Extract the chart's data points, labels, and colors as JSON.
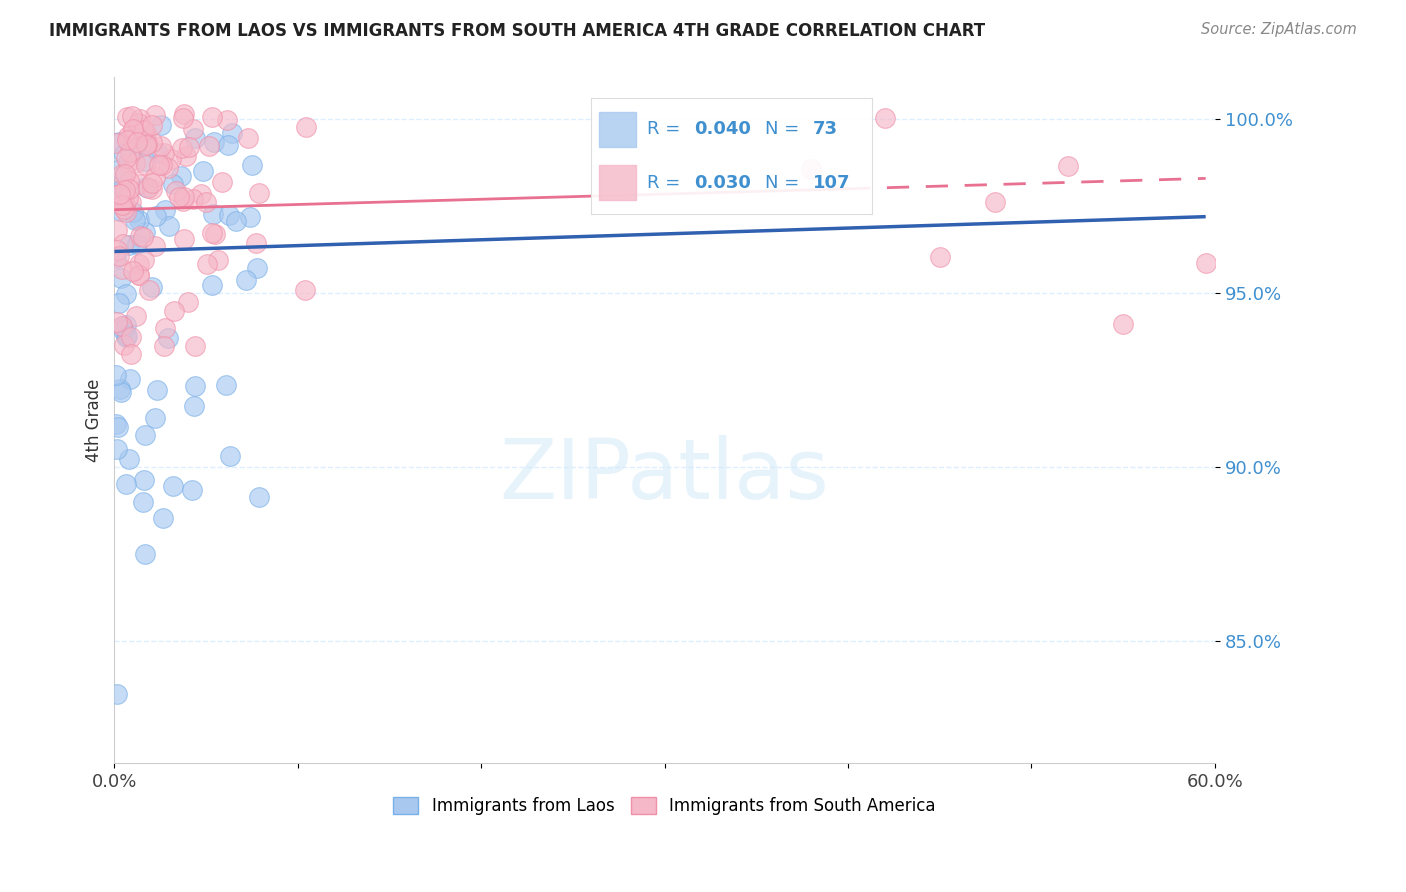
{
  "title": "IMMIGRANTS FROM LAOS VS IMMIGRANTS FROM SOUTH AMERICA 4TH GRADE CORRELATION CHART",
  "source": "Source: ZipAtlas.com",
  "ylabel": "4th Grade",
  "yaxis_labels": [
    "100.0%",
    "95.0%",
    "90.0%",
    "85.0%"
  ],
  "yaxis_values": [
    1.0,
    0.95,
    0.9,
    0.85
  ],
  "xmin": 0.0,
  "xmax": 0.6,
  "ymin": 0.815,
  "ymax": 1.012,
  "blue_R": 0.04,
  "blue_N": 73,
  "pink_R": 0.03,
  "pink_N": 107,
  "blue_color": "#a8c8f0",
  "pink_color": "#f5b8c8",
  "blue_edge_color": "#7ab0e8",
  "pink_edge_color": "#f090a8",
  "blue_line_color": "#3060b0",
  "pink_line_color": "#e87090",
  "legend_label_blue": "Immigrants from Laos",
  "legend_label_pink": "Immigrants from South America",
  "watermark_color": "#d0e8f8",
  "legend_text_color": "#4090d0",
  "title_color": "#222222",
  "source_color": "#888888",
  "grid_color": "#ddeeff",
  "spine_color": "#cccccc"
}
